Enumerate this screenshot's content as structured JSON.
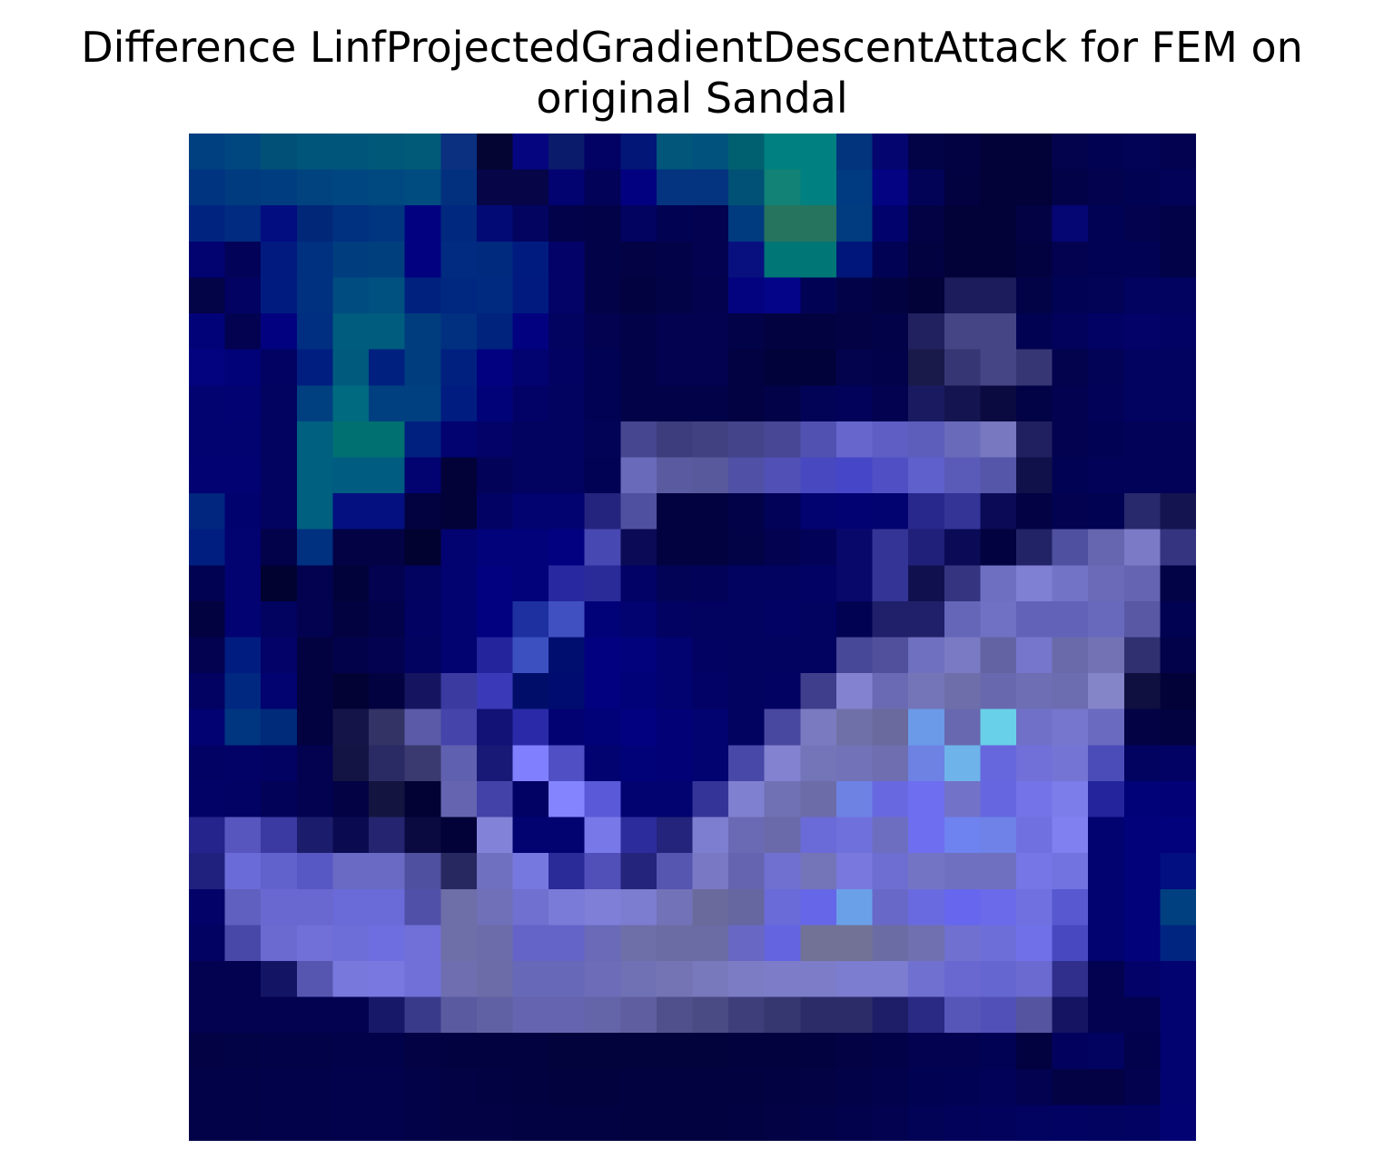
{
  "title": {
    "line1": "Difference LinfProjectedGradientDescentAttack for FEM on",
    "line2": "original Sandal"
  },
  "chart_data": {
    "type": "heatmap",
    "title": "Difference LinfProjectedGradientDescentAttack for FEM on original Sandal",
    "xlabel": "",
    "ylabel": "",
    "axes_visible": false,
    "rows": 28,
    "cols": 28,
    "cells": [
      [
        "#004080",
        "#00467f",
        "#005077",
        "#00557a",
        "#00567a",
        "#005878",
        "#005a78",
        "#0b3080",
        "#050533",
        "#050580",
        "#0a1b6b",
        "#020265",
        "#021678",
        "#01567a",
        "#01537e",
        "#006070",
        "#008080",
        "#008080",
        "#02337d",
        "#050570",
        "#020247",
        "#020242",
        "#020238",
        "#020238",
        "#02024d",
        "#020252",
        "#020257",
        "#020250"
      ],
      [
        "#003380",
        "#003a7f",
        "#003c80",
        "#00437f",
        "#004680",
        "#004880",
        "#004b80",
        "#03307e",
        "#050547",
        "#050547",
        "#020270",
        "#020259",
        "#020280",
        "#043380",
        "#043380",
        "#005175",
        "#118275",
        "#008080",
        "#003a80",
        "#040482",
        "#020257",
        "#020241",
        "#020238",
        "#020238",
        "#020249",
        "#02024f",
        "#020252",
        "#020259"
      ],
      [
        "#002380",
        "#002b80",
        "#020d80",
        "#002778",
        "#003080",
        "#003680",
        "#020280",
        "#00287e",
        "#020a75",
        "#030360",
        "#02024a",
        "#020248",
        "#020260",
        "#020252",
        "#020250",
        "#003b80",
        "#26745e",
        "#26745e",
        "#003c7f",
        "#02026d",
        "#020244",
        "#020238",
        "#020238",
        "#020245",
        "#050574",
        "#020254",
        "#02024f",
        "#020248"
      ],
      [
        "#020270",
        "#020258",
        "#001a80",
        "#003080",
        "#003d7e",
        "#003f7e",
        "#020280",
        "#002b80",
        "#002a7e",
        "#001b80",
        "#020268",
        "#020248",
        "#020245",
        "#020249",
        "#020250",
        "#081080",
        "#007676",
        "#007676",
        "#01167a",
        "#020255",
        "#020241",
        "#020238",
        "#020238",
        "#020240",
        "#020250",
        "#020255",
        "#020255",
        "#020249"
      ],
      [
        "#030347",
        "#020262",
        "#001b80",
        "#003080",
        "#004c80",
        "#005080",
        "#00227e",
        "#002880",
        "#002a80",
        "#001a80",
        "#020267",
        "#020248",
        "#020240",
        "#020246",
        "#02024e",
        "#030380",
        "#040488",
        "#020255",
        "#020248",
        "#020240",
        "#020238",
        "#1c1c5c",
        "#1c1c5c",
        "#020247",
        "#020255",
        "#020256",
        "#020260",
        "#020260"
      ],
      [
        "#020278",
        "#020250",
        "#020280",
        "#002e80",
        "#005c7e",
        "#005c7e",
        "#003d7e",
        "#00307f",
        "#00237e",
        "#020280",
        "#020260",
        "#020250",
        "#020248",
        "#020250",
        "#020250",
        "#020248",
        "#020240",
        "#020240",
        "#020244",
        "#020248",
        "#212160",
        "#454585",
        "#454585",
        "#020252",
        "#02025c",
        "#020264",
        "#020268",
        "#020265"
      ],
      [
        "#03037f",
        "#020278",
        "#020262",
        "#001e80",
        "#005a7e",
        "#002080",
        "#003d7e",
        "#002080",
        "#020280",
        "#020270",
        "#020263",
        "#020255",
        "#020248",
        "#020250",
        "#020250",
        "#020243",
        "#02023b",
        "#02023b",
        "#02024d",
        "#02024a",
        "#1a1a4a",
        "#363675",
        "#454585",
        "#363675",
        "#02024d",
        "#020257",
        "#020260",
        "#020260"
      ],
      [
        "#020270",
        "#020272",
        "#020260",
        "#004080",
        "#006a80",
        "#004080",
        "#004080",
        "#001c80",
        "#020278",
        "#020266",
        "#020260",
        "#020255",
        "#020248",
        "#020248",
        "#020248",
        "#020243",
        "#020248",
        "#020256",
        "#02025a",
        "#020250",
        "#1a1a60",
        "#141450",
        "#0a0a40",
        "#020246",
        "#020251",
        "#020258",
        "#020260",
        "#020260"
      ],
      [
        "#020270",
        "#020270",
        "#020260",
        "#006080",
        "#007070",
        "#007070",
        "#002080",
        "#020270",
        "#020268",
        "#020260",
        "#020260",
        "#020257",
        "#464690",
        "#3d3d7e",
        "#414181",
        "#44448a",
        "#474795",
        "#5151b2",
        "#6666cc",
        "#5e5ec4",
        "#5d5dbb",
        "#6a6aba",
        "#7878c0",
        "#202060",
        "#020250",
        "#020255",
        "#020258",
        "#020258"
      ],
      [
        "#020272",
        "#020272",
        "#020260",
        "#006080",
        "#005c80",
        "#005c80",
        "#020270",
        "#020238",
        "#020258",
        "#020260",
        "#020260",
        "#020255",
        "#6a6aba",
        "#5a5aa0",
        "#58589c",
        "#5050a6",
        "#5050b6",
        "#4848c0",
        "#4646c8",
        "#5050c4",
        "#6060cc",
        "#5a5ab8",
        "#5555aa",
        "#10104a",
        "#020254",
        "#020258",
        "#020258",
        "#020258"
      ],
      [
        "#002680",
        "#02026e",
        "#020260",
        "#006080",
        "#041080",
        "#041080",
        "#020240",
        "#020238",
        "#020265",
        "#020270",
        "#020270",
        "#24247e",
        "#5050a0",
        "#020240",
        "#020240",
        "#020248",
        "#020258",
        "#020270",
        "#020272",
        "#020270",
        "#28288c",
        "#343496",
        "#0a0a56",
        "#020245",
        "#020250",
        "#020253",
        "#28286c",
        "#141450"
      ],
      [
        "#001e80",
        "#020270",
        "#02024a",
        "#003080",
        "#020245",
        "#020245",
        "#020230",
        "#020270",
        "#02027a",
        "#02027a",
        "#020280",
        "#4848b2",
        "#0a0a56",
        "#020240",
        "#020240",
        "#020246",
        "#020250",
        "#020258",
        "#08086a",
        "#343496",
        "#20207a",
        "#0a0a56",
        "#020240",
        "#222266",
        "#5050a0",
        "#6565b0",
        "#7a7ac6",
        "#343480"
      ],
      [
        "#020252",
        "#020270",
        "#020230",
        "#020250",
        "#02023a",
        "#020250",
        "#020260",
        "#020270",
        "#020280",
        "#02027a",
        "#2828a0",
        "#2a2a98",
        "#020266",
        "#020257",
        "#020258",
        "#020260",
        "#020261",
        "#020265",
        "#08086a",
        "#343496",
        "#10104f",
        "#343480",
        "#6f6fc2",
        "#7f7fd4",
        "#7272c6",
        "#6a6ab8",
        "#6464b2",
        "#020246"
      ],
      [
        "#020240",
        "#020272",
        "#020260",
        "#020250",
        "#020240",
        "#02024a",
        "#020262",
        "#020270",
        "#020280",
        "#1e30a0",
        "#4050c0",
        "#020278",
        "#020270",
        "#020262",
        "#020260",
        "#020260",
        "#020265",
        "#020261",
        "#020252",
        "#20206a",
        "#20206a",
        "#6666b8",
        "#7070c4",
        "#6262b8",
        "#6262b8",
        "#6868bc",
        "#5858a4",
        "#020252"
      ],
      [
        "#020250",
        "#001c80",
        "#020268",
        "#020240",
        "#02024a",
        "#020250",
        "#020260",
        "#020270",
        "#24249c",
        "#3c50c0",
        "#000e70",
        "#020280",
        "#02027c",
        "#020270",
        "#020262",
        "#020260",
        "#020260",
        "#020260",
        "#484898",
        "#50509c",
        "#7070c0",
        "#7a7ac4",
        "#6363a4",
        "#7676cc",
        "#6a6aaa",
        "#7272b4",
        "#303070",
        "#02024a"
      ],
      [
        "#020262",
        "#002880",
        "#020270",
        "#020240",
        "#020234",
        "#020240",
        "#141460",
        "#3a3aa0",
        "#3a3ab8",
        "#000e6a",
        "#000c70",
        "#020280",
        "#020278",
        "#020270",
        "#020266",
        "#020260",
        "#020263",
        "#3e3e8c",
        "#8282d0",
        "#6a6ab4",
        "#7474b8",
        "#6e6eaa",
        "#6868ae",
        "#6e6eb4",
        "#6c6cb0",
        "#8484c8",
        "#101040",
        "#020238"
      ],
      [
        "#020272",
        "#00357f",
        "#002a7a",
        "#020240",
        "#141448",
        "#333366",
        "#5a5aa8",
        "#4444aa",
        "#121276",
        "#2a2aa8",
        "#020272",
        "#020278",
        "#020280",
        "#020276",
        "#020270",
        "#020260",
        "#4848a0",
        "#7a7ac0",
        "#7070a8",
        "#6a6a9e",
        "#6a9ae8",
        "#6868b0",
        "#68d0e8",
        "#7070c8",
        "#7676ce",
        "#6a6ac0",
        "#020244",
        "#020240"
      ],
      [
        "#020264",
        "#020266",
        "#020262",
        "#020250",
        "#141444",
        "#2a2a64",
        "#3a3a70",
        "#6060b0",
        "#181876",
        "#8080ff",
        "#5050c4",
        "#020270",
        "#020278",
        "#020276",
        "#020270",
        "#4848a8",
        "#8282d0",
        "#7474b8",
        "#7272b8",
        "#6e6eb0",
        "#6e82e4",
        "#6eb4ea",
        "#6666dd",
        "#7070d8",
        "#7474d4",
        "#4c4cb8",
        "#020260",
        "#020264"
      ],
      [
        "#020266",
        "#020264",
        "#020258",
        "#020250",
        "#020244",
        "#141440",
        "#020234",
        "#6464b0",
        "#4242a8",
        "#020264",
        "#8484ff",
        "#5a5ad8",
        "#020270",
        "#020270",
        "#343498",
        "#8080d0",
        "#7070b4",
        "#6c6ca8",
        "#6e82e4",
        "#6868e0",
        "#6e6ef0",
        "#7272c8",
        "#6666e0",
        "#7474e8",
        "#7c7cea",
        "#24249c",
        "#020278",
        "#020276"
      ],
      [
        "#24248c",
        "#5656be",
        "#3a3aa2",
        "#1c1c6c",
        "#0a0a50",
        "#242470",
        "#0a0a40",
        "#020238",
        "#8282d8",
        "#020270",
        "#020270",
        "#7878e8",
        "#2c2c9c",
        "#24247c",
        "#7e7ed0",
        "#6a6ab4",
        "#6a6aaa",
        "#6a6ad8",
        "#7070dc",
        "#6e6ec0",
        "#6e6ef0",
        "#6e82f0",
        "#6e82e8",
        "#7070e0",
        "#8080f0",
        "#020270",
        "#02027a",
        "#02027c"
      ],
      [
        "#20207e",
        "#6a6ad8",
        "#6262cc",
        "#5858c4",
        "#6a6ac4",
        "#6a6ac4",
        "#5050a0",
        "#282860",
        "#7070c0",
        "#7777e0",
        "#2a2a98",
        "#5050b8",
        "#24247c",
        "#5656b0",
        "#7878c4",
        "#6464b0",
        "#7070d0",
        "#7474b8",
        "#7878de",
        "#6e6ed2",
        "#7474c4",
        "#7070c0",
        "#7070c0",
        "#7676e6",
        "#7272e0",
        "#020270",
        "#02027a",
        "#010f80"
      ],
      [
        "#020268",
        "#6060c0",
        "#6868d0",
        "#6868d0",
        "#6a6ad8",
        "#6a6ad8",
        "#5050a8",
        "#6e6ea8",
        "#7070b8",
        "#7070d0",
        "#7a7ad8",
        "#7f7fd8",
        "#7c7cd0",
        "#7272b8",
        "#6a6a9c",
        "#6666a0",
        "#6a6ad8",
        "#6666e8",
        "#6aa0e8",
        "#6868c8",
        "#6a6ae0",
        "#6666ee",
        "#6a6aea",
        "#7070e0",
        "#5858d0",
        "#020270",
        "#02027a",
        "#004080"
      ],
      [
        "#020262",
        "#4848a8",
        "#6a6ad0",
        "#7070d8",
        "#6e6ed8",
        "#6e6ee0",
        "#7070d8",
        "#6e6ea8",
        "#6c6caa",
        "#6464c8",
        "#6464c8",
        "#6a6ab8",
        "#6e6ea8",
        "#6c6ca4",
        "#6c6ca4",
        "#6868c4",
        "#6464e0",
        "#727296",
        "#727296",
        "#6c6ca4",
        "#7070b0",
        "#7070d0",
        "#6e6ed8",
        "#7070e8",
        "#4848c0",
        "#020270",
        "#02027a",
        "#002580"
      ],
      [
        "#020250",
        "#020250",
        "#141464",
        "#5656b0",
        "#7878dc",
        "#7878e0",
        "#7070d8",
        "#6e6eb0",
        "#6c6ca8",
        "#6868b8",
        "#6868b8",
        "#6c6cb8",
        "#7070b4",
        "#7474b4",
        "#7878bc",
        "#7c7cc4",
        "#7c7cc8",
        "#7c7cc8",
        "#7c7cd0",
        "#7c7cd0",
        "#7070d0",
        "#6868d0",
        "#6666d0",
        "#6a6ad0",
        "#30308c",
        "#020250",
        "#020268",
        "#020270"
      ],
      [
        "#020250",
        "#020250",
        "#020250",
        "#020250",
        "#020250",
        "#181868",
        "#3a3a8a",
        "#5a5aa0",
        "#6060a4",
        "#6464b0",
        "#6464b0",
        "#6464a8",
        "#5e5ea0",
        "#50508c",
        "#4a4a84",
        "#3e3e7a",
        "#363670",
        "#2c2c68",
        "#2c2c68",
        "#1e1e68",
        "#2a2a84",
        "#5656b8",
        "#5050b8",
        "#5454a0",
        "#141462",
        "#020250",
        "#020250",
        "#020270"
      ],
      [
        "#020245",
        "#020247",
        "#020248",
        "#020249",
        "#02024a",
        "#02024a",
        "#020245",
        "#020240",
        "#020240",
        "#020240",
        "#02023c",
        "#02023c",
        "#02023d",
        "#02023d",
        "#02023d",
        "#02023e",
        "#02023f",
        "#020240",
        "#020244",
        "#020248",
        "#020250",
        "#020250",
        "#020254",
        "#020240",
        "#02025e",
        "#020260",
        "#02024c",
        "#020270"
      ],
      [
        "#020248",
        "#020249",
        "#02024a",
        "#02024a",
        "#02024c",
        "#02024c",
        "#020248",
        "#020244",
        "#020242",
        "#020240",
        "#02023e",
        "#02023e",
        "#020240",
        "#020240",
        "#020240",
        "#020241",
        "#020242",
        "#020244",
        "#020248",
        "#02024c",
        "#020252",
        "#020254",
        "#020258",
        "#020250",
        "#020244",
        "#020244",
        "#02024f",
        "#020270"
      ],
      [
        "#020248",
        "#020249",
        "#02024a",
        "#02024a",
        "#02024c",
        "#02024c",
        "#020248",
        "#020244",
        "#020244",
        "#020242",
        "#020242",
        "#020242",
        "#020240",
        "#020240",
        "#020240",
        "#020242",
        "#020244",
        "#020248",
        "#02024c",
        "#020250",
        "#020256",
        "#02025a",
        "#02025c",
        "#020260",
        "#020262",
        "#020260",
        "#020262",
        "#020272"
      ]
    ]
  }
}
